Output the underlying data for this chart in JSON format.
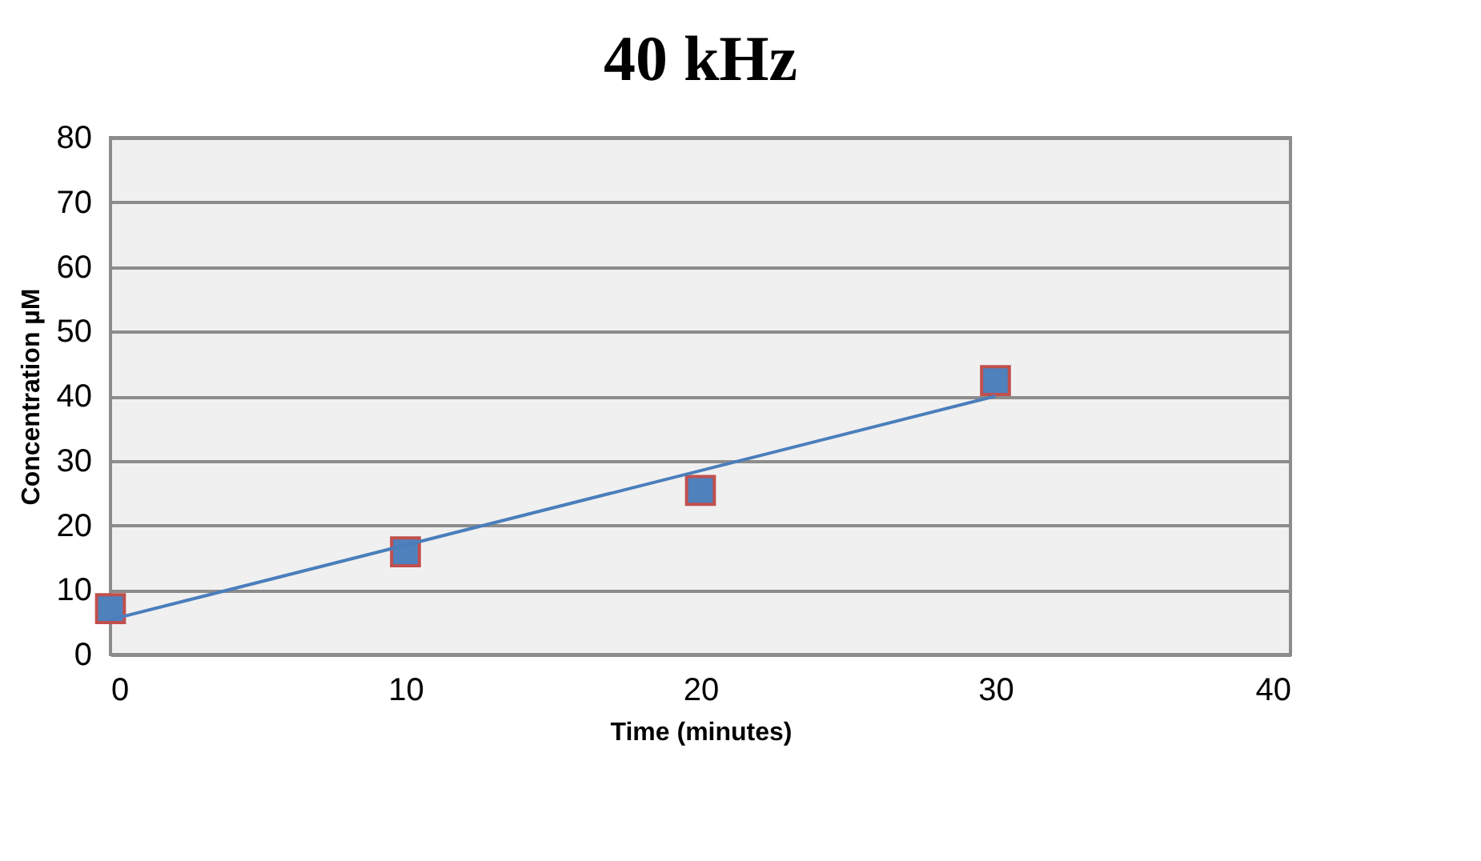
{
  "chart_data": {
    "type": "scatter",
    "title": "40 kHz",
    "xlabel": "Time (minutes)",
    "ylabel": "Concentration µM",
    "x": [
      0,
      10,
      20,
      30
    ],
    "series": [
      {
        "color": "#4f81bd",
        "values": [
          7.1,
          15.9,
          25.4,
          42.4
        ],
        "marker": "square"
      },
      {
        "type": "line",
        "color": "#4a7ebb",
        "x": [
          0,
          30
        ],
        "values": [
          5.4,
          40.0
        ],
        "marker": "none",
        "line_style": "solid"
      }
    ],
    "xlim": [
      0,
      40
    ],
    "xticks": [
      0,
      10,
      20,
      30,
      40
    ],
    "ylim": [
      0,
      80
    ],
    "yticks": [
      0,
      10,
      20,
      30,
      40,
      50,
      60,
      70,
      80
    ],
    "grid": "y"
  }
}
